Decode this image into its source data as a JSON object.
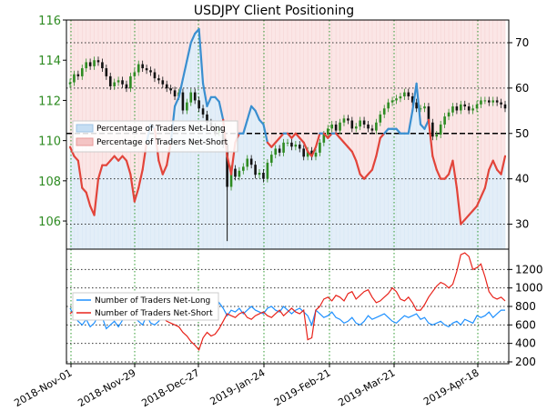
{
  "chart_data": [
    {
      "type": "candlestick_with_area",
      "title": "USDJPY Client Positioning",
      "left_axis": {
        "ticks": [
          "106",
          "108",
          "110",
          "112",
          "114",
          "116"
        ],
        "ylim": [
          104.6,
          116
        ],
        "color": "#2e8b22"
      },
      "right_axis": {
        "ticks": [
          "30",
          "40",
          "50",
          "60",
          "70"
        ],
        "ylim": [
          24.5,
          75
        ]
      },
      "legend": [
        {
          "name": "Percentage of Traders Net-Long",
          "color": "#c6def3"
        },
        {
          "name": "Percentage of Traders Net-Short",
          "color": "#f4c4c4"
        }
      ],
      "reference_line": {
        "value": 50,
        "style": "dashed"
      },
      "price_close": [
        112.9,
        113.3,
        113.2,
        113.6,
        113.9,
        113.7,
        114.0,
        113.9,
        113.6,
        113.2,
        112.7,
        112.9,
        113.0,
        112.8,
        112.6,
        113.2,
        113.4,
        113.8,
        113.6,
        113.5,
        113.4,
        113.1,
        113.0,
        112.8,
        112.6,
        112.5,
        112.2,
        112.4,
        111.5,
        111.9,
        112.4,
        112.0,
        111.6,
        111.3,
        110.9,
        110.7,
        110.4,
        110.6,
        109.8,
        107.7,
        108.6,
        108.2,
        108.5,
        108.7,
        109.1,
        108.8,
        108.3,
        108.4,
        108.1,
        108.9,
        109.3,
        109.6,
        109.4,
        109.9,
        109.9,
        109.7,
        109.8,
        109.6,
        109.2,
        109.5,
        109.2,
        109.4,
        109.9,
        110.3,
        110.6,
        110.8,
        110.5,
        110.9,
        111.1,
        111.0,
        110.6,
        110.7,
        111.0,
        110.8,
        110.6,
        110.5,
        110.9,
        111.3,
        111.6,
        111.9,
        112.0,
        112.1,
        112.2,
        112.4,
        112.2,
        111.9,
        111.6,
        111.6,
        111.7,
        110.9,
        110.2,
        110.3,
        110.8,
        111.2,
        111.4,
        111.7,
        111.5,
        111.8,
        111.7,
        111.5,
        111.6,
        111.8,
        112.0,
        112.0,
        111.9,
        112.0,
        111.9,
        111.8,
        111.6
      ],
      "net_long_pct": [
        47,
        45,
        44,
        38,
        37,
        34,
        32,
        40,
        43,
        43,
        44,
        45,
        44,
        45,
        44,
        41,
        35,
        38,
        42,
        48,
        52,
        51,
        44,
        41,
        43,
        48,
        56,
        58,
        62,
        66,
        70,
        72,
        73,
        61,
        56,
        58,
        58,
        57,
        53,
        45,
        41,
        48,
        50,
        50,
        53,
        56,
        55,
        53,
        52,
        48,
        47,
        48,
        49,
        50,
        50,
        49,
        50,
        49,
        48,
        46,
        45,
        47,
        50,
        50,
        49,
        50,
        50,
        49,
        48,
        47,
        46,
        44,
        41,
        40,
        41,
        42,
        45,
        49,
        50,
        51,
        51,
        51,
        50,
        50,
        50,
        55,
        61,
        52,
        51,
        53,
        45,
        42,
        40,
        40,
        41,
        44,
        38,
        30,
        31,
        32,
        33,
        34,
        36,
        38,
        42,
        44,
        42,
        41,
        45
      ],
      "bottom_axis": {
        "ticks": [
          "200",
          "400",
          "600",
          "800",
          "1000",
          "1200"
        ],
        "ylim": [
          180,
          1420
        ]
      },
      "bottom_legend": [
        {
          "name": "Number of Traders Net-Long",
          "color": "#1e90ff"
        },
        {
          "name": "Number of Traders Net-Short",
          "color": "#e8221a"
        }
      ],
      "traders_net_long": [
        780,
        700,
        640,
        600,
        660,
        580,
        620,
        700,
        680,
        560,
        600,
        640,
        580,
        650,
        700,
        720,
        680,
        640,
        600,
        700,
        620,
        600,
        640,
        700,
        720,
        760,
        800,
        720,
        760,
        820,
        800,
        760,
        780,
        740,
        760,
        800,
        720,
        840,
        780,
        700,
        760,
        740,
        780,
        720,
        760,
        800,
        760,
        740,
        720,
        780,
        800,
        760,
        740,
        800,
        760,
        720,
        760,
        780,
        740,
        700,
        600,
        760,
        720,
        680,
        700,
        740,
        680,
        660,
        620,
        640,
        680,
        620,
        600,
        640,
        700,
        660,
        680,
        700,
        720,
        680,
        640,
        620,
        660,
        700,
        680,
        700,
        720,
        660,
        680,
        620,
        600,
        620,
        640,
        600,
        580,
        620,
        640,
        600,
        660,
        640,
        620,
        700,
        680,
        700,
        740,
        680,
        720,
        760,
        760
      ],
      "traders_net_short": [
        720,
        760,
        800,
        840,
        780,
        820,
        760,
        700,
        680,
        780,
        740,
        700,
        760,
        720,
        680,
        660,
        700,
        740,
        780,
        700,
        760,
        780,
        740,
        680,
        640,
        620,
        600,
        580,
        520,
        480,
        420,
        380,
        330,
        460,
        520,
        480,
        500,
        560,
        640,
        720,
        700,
        680,
        720,
        740,
        680,
        660,
        700,
        720,
        740,
        700,
        680,
        720,
        760,
        700,
        740,
        780,
        740,
        720,
        760,
        440,
        460,
        760,
        800,
        880,
        900,
        860,
        920,
        900,
        860,
        940,
        960,
        880,
        920,
        960,
        980,
        900,
        840,
        860,
        900,
        940,
        1000,
        960,
        880,
        860,
        900,
        840,
        760,
        760,
        820,
        900,
        960,
        1020,
        1060,
        1040,
        1000,
        1040,
        1180,
        1360,
        1380,
        1340,
        1200,
        1220,
        1260,
        1120,
        960,
        900,
        880,
        900,
        860
      ],
      "x_tick_labels": [
        "2018-Nov-01",
        "2018-Nov-29",
        "2018-Dec-27",
        "2019-Jan-24",
        "2019-Feb-21",
        "2019-Mar-21",
        "2019-Apr-18"
      ]
    }
  ]
}
